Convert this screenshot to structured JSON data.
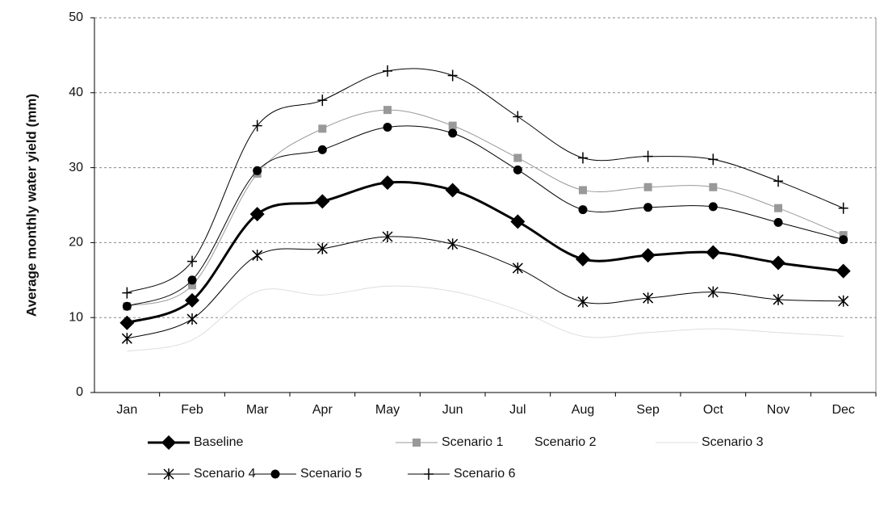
{
  "chart_data": {
    "type": "line",
    "y_label": "Average monthly water yield (mm)",
    "categories": [
      "Jan",
      "Feb",
      "Mar",
      "Apr",
      "May",
      "Jun",
      "Jul",
      "Aug",
      "Sep",
      "Oct",
      "Nov",
      "Dec"
    ],
    "ylim": [
      0,
      50
    ],
    "yticks": [
      0,
      10,
      20,
      30,
      40,
      50
    ],
    "grid": true,
    "legend": "bottom",
    "series": [
      {
        "name": "Baseline",
        "color": "#000000",
        "marker": "diamond",
        "width": 3,
        "values": [
          9.3,
          12.3,
          23.8,
          25.5,
          28.0,
          27.0,
          22.8,
          17.8,
          18.3,
          18.7,
          17.3,
          16.2
        ]
      },
      {
        "name": "Scenario 1",
        "color": "#999999",
        "marker": "square",
        "width": 1,
        "values": [
          11.5,
          14.3,
          29.2,
          35.2,
          37.7,
          35.6,
          31.3,
          27.0,
          27.4,
          27.4,
          24.6,
          21.0
        ]
      },
      {
        "name": "Scenario 2",
        "color": "#ffffff",
        "marker": "triangle",
        "width": 1,
        "values": [
          9.5,
          12.5,
          24.0,
          25.6,
          28.1,
          27.1,
          22.9,
          17.9,
          18.4,
          18.8,
          17.4,
          16.3
        ]
      },
      {
        "name": "Scenario 3",
        "color": "#dddddd",
        "marker": "none",
        "width": 1,
        "values": [
          5.5,
          7.0,
          13.5,
          13.0,
          14.2,
          13.5,
          11.0,
          7.5,
          8.0,
          8.5,
          8.0,
          7.5
        ]
      },
      {
        "name": "Scenario 4",
        "color": "#000000",
        "marker": "star",
        "width": 1,
        "values": [
          7.2,
          9.8,
          18.3,
          19.2,
          20.8,
          19.8,
          16.6,
          12.1,
          12.6,
          13.4,
          12.4,
          12.2
        ]
      },
      {
        "name": "Scenario 5",
        "color": "#000000",
        "marker": "circle",
        "width": 1,
        "values": [
          11.5,
          15.0,
          29.6,
          32.4,
          35.4,
          34.6,
          29.7,
          24.4,
          24.7,
          24.8,
          22.7,
          20.4
        ]
      },
      {
        "name": "Scenario 6",
        "color": "#000000",
        "marker": "plus",
        "width": 1,
        "values": [
          13.3,
          17.5,
          35.6,
          39.0,
          42.9,
          42.3,
          36.8,
          31.3,
          31.5,
          31.1,
          28.2,
          24.6
        ]
      }
    ]
  }
}
